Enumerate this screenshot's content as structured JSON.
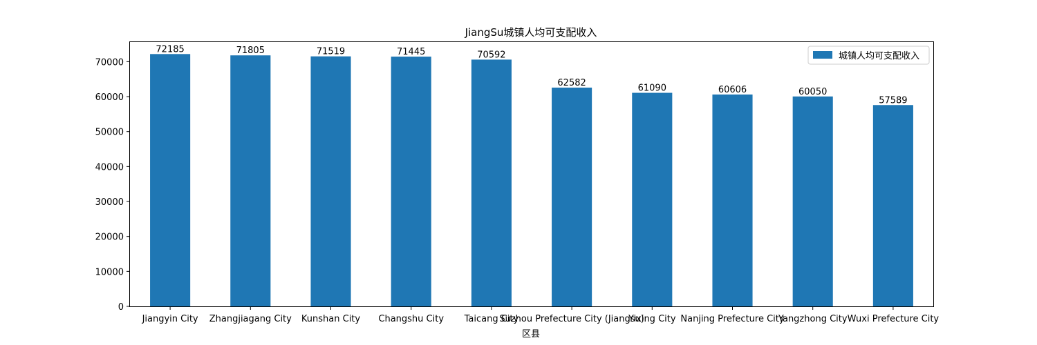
{
  "chart_data": {
    "type": "bar",
    "title": "JiangSu城镇人均可支配收入",
    "xlabel": "区县",
    "ylabel": "",
    "categories": [
      "Jiangyin City",
      "Zhangjiagang City",
      "Kunshan City",
      "Changshu City",
      "Taicang City",
      "Suzhou Prefecture City (Jiangsu)",
      "Yixing City",
      "Nanjing Prefecture City",
      "Yangzhong City",
      "Wuxi Prefecture City"
    ],
    "series": [
      {
        "name": "城镇人均可支配收入",
        "values": [
          72185,
          71805,
          71519,
          71445,
          70592,
          62582,
          61090,
          60606,
          60050,
          57589
        ],
        "color": "#1f77b4"
      }
    ],
    "ylim": [
      0,
      75800
    ],
    "yticks": [
      "0",
      "10000",
      "20000",
      "30000",
      "40000",
      "50000",
      "60000",
      "70000"
    ],
    "grid": false,
    "legend_position": "top-right",
    "data_labels": true
  }
}
